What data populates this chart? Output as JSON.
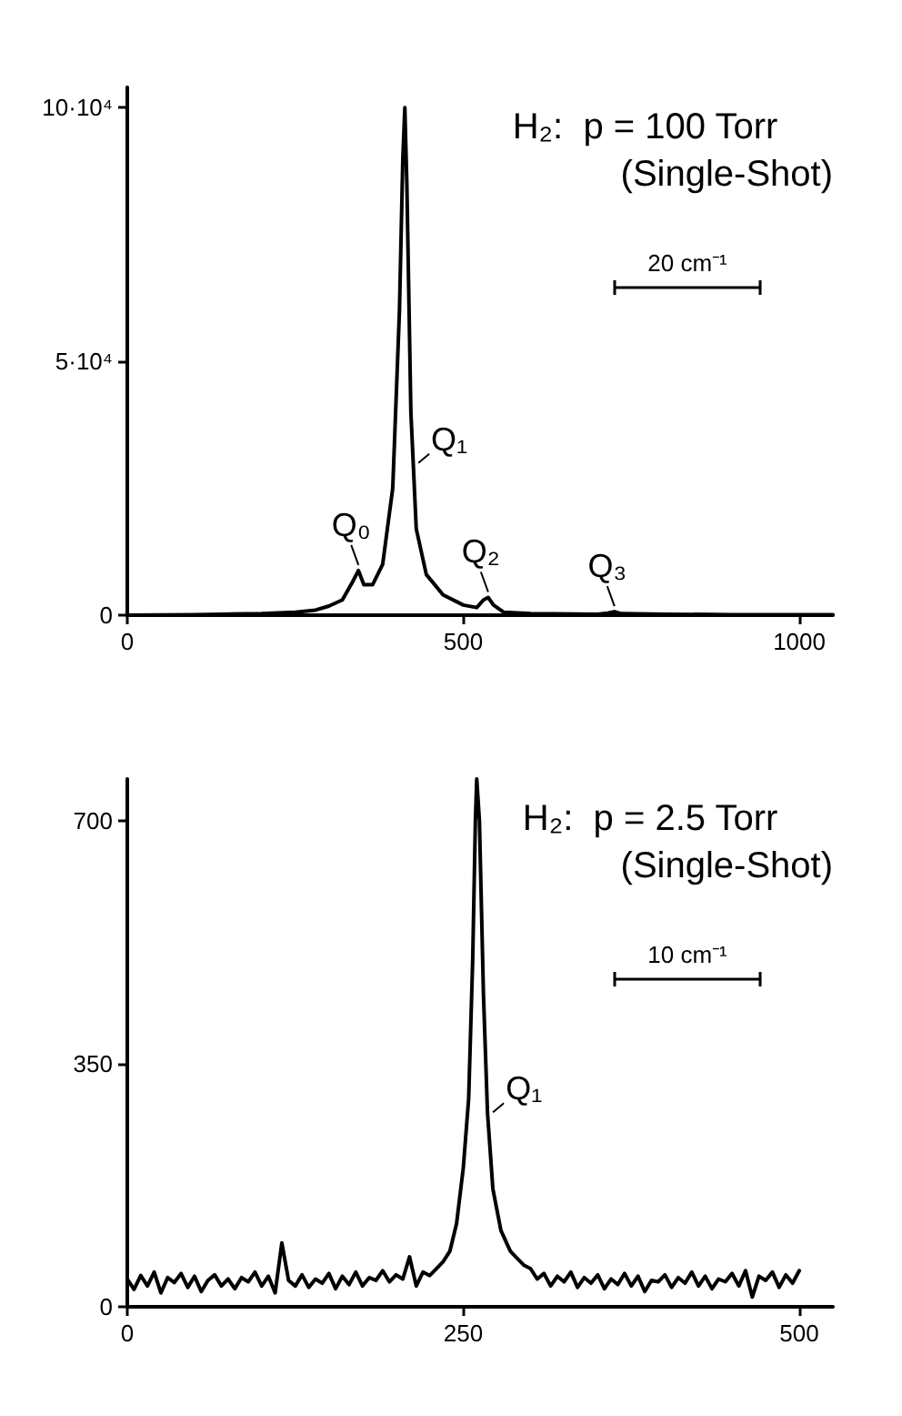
{
  "chart_data": [
    {
      "type": "line",
      "xlim": [
        0,
        1050
      ],
      "ylim": [
        0,
        104000
      ],
      "xticks": [
        0,
        500,
        1000
      ],
      "yticks": [
        0,
        {
          "value": 50000,
          "label": "5·10⁴"
        },
        {
          "value": 100000,
          "label": "10·10⁴"
        }
      ],
      "grid": false,
      "marker": "none",
      "line_style": "solid",
      "annotations": [
        "H₂:  p = 100 Torr",
        "(Single-Shot)",
        "20 cm⁻¹",
        {
          "text": "Q₀",
          "x": 344,
          "y": 8800
        },
        {
          "text": "Q₁",
          "x": 425,
          "y": 30000
        },
        {
          "text": "Q₂",
          "x": 537,
          "y": 3500
        },
        {
          "text": "Q₃",
          "x": 725,
          "y": 700
        }
      ],
      "series": [
        {
          "color": "#000000",
          "x": [
            0,
            100,
            200,
            250,
            280,
            300,
            320,
            335,
            344,
            352,
            365,
            380,
            395,
            405,
            410,
            413,
            416,
            422,
            430,
            445,
            470,
            500,
            520,
            530,
            537,
            545,
            560,
            600,
            700,
            715,
            725,
            735,
            800,
            900,
            1000,
            1050
          ],
          "values": [
            0,
            100,
            300,
            600,
            1000,
            1800,
            3000,
            6500,
            8800,
            6000,
            6000,
            10000,
            25000,
            60000,
            90000,
            100000,
            85000,
            40000,
            17000,
            8000,
            4000,
            2000,
            1500,
            3000,
            3500,
            2000,
            600,
            300,
            200,
            400,
            700,
            300,
            200,
            100,
            100,
            100
          ]
        }
      ]
    },
    {
      "type": "line",
      "xlim": [
        0,
        525
      ],
      "ylim": [
        0,
        760
      ],
      "xticks": [
        0,
        250,
        500
      ],
      "yticks": [
        0,
        350,
        700
      ],
      "grid": false,
      "marker": "none",
      "line_style": "solid",
      "annotations": [
        "H₂:  p = 2.5 Torr",
        "(Single-Shot)",
        "10 cm⁻¹",
        {
          "text": "Q₁",
          "x": 268,
          "y": 280
        }
      ],
      "series": [
        {
          "color": "#000000",
          "x": [
            0,
            5,
            10,
            15,
            20,
            25,
            30,
            35,
            40,
            45,
            50,
            55,
            60,
            65,
            70,
            75,
            80,
            85,
            90,
            95,
            100,
            105,
            110,
            115,
            120,
            125,
            130,
            135,
            140,
            145,
            150,
            155,
            160,
            165,
            170,
            175,
            180,
            185,
            190,
            195,
            200,
            205,
            210,
            215,
            220,
            225,
            230,
            235,
            240,
            245,
            250,
            254,
            257,
            259,
            260,
            262,
            265,
            268,
            272,
            278,
            285,
            290,
            295,
            300,
            305,
            310,
            315,
            320,
            325,
            330,
            335,
            340,
            345,
            350,
            355,
            360,
            365,
            370,
            375,
            380,
            385,
            390,
            395,
            400,
            405,
            410,
            415,
            420,
            425,
            430,
            435,
            440,
            445,
            450,
            455,
            460,
            465,
            470,
            475,
            480,
            485,
            490,
            495,
            500
          ],
          "values": [
            40,
            25,
            45,
            30,
            50,
            20,
            42,
            35,
            48,
            28,
            44,
            22,
            38,
            46,
            30,
            40,
            26,
            42,
            36,
            50,
            30,
            44,
            20,
            92,
            38,
            30,
            46,
            28,
            40,
            34,
            48,
            26,
            44,
            32,
            50,
            30,
            42,
            38,
            52,
            36,
            46,
            40,
            72,
            30,
            50,
            45,
            55,
            65,
            80,
            120,
            200,
            300,
            500,
            700,
            760,
            700,
            450,
            280,
            170,
            110,
            80,
            70,
            60,
            55,
            40,
            48,
            30,
            44,
            36,
            50,
            28,
            42,
            34,
            46,
            26,
            40,
            32,
            48,
            30,
            44,
            22,
            38,
            36,
            46,
            28,
            42,
            34,
            50,
            30,
            44,
            26,
            40,
            36,
            48,
            30,
            52,
            14,
            44,
            38,
            50,
            28,
            46,
            34,
            52
          ]
        }
      ]
    }
  ]
}
